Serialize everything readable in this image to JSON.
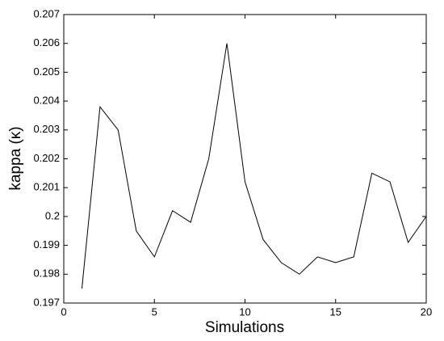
{
  "chart_data": {
    "type": "line",
    "xlabel": "Simulations",
    "ylabel": "kappa (κ)",
    "x": [
      1,
      2,
      3,
      4,
      5,
      6,
      7,
      8,
      9,
      10,
      11,
      12,
      13,
      14,
      15,
      16,
      17,
      18,
      19,
      20
    ],
    "series": [
      {
        "color": "#000000",
        "values": [
          0.1975,
          0.2038,
          0.203,
          0.1995,
          0.1986,
          0.2002,
          0.1998,
          0.202,
          0.206,
          0.2012,
          0.1992,
          0.1984,
          0.198,
          0.1986,
          0.1984,
          0.1986,
          0.2015,
          0.2012,
          0.1991,
          0.2
        ]
      }
    ],
    "xlim": [
      0,
      20
    ],
    "xticks": [
      0,
      5,
      10,
      15,
      20
    ],
    "ylim": [
      0.197,
      0.207
    ],
    "yticks": [
      0.197,
      0.198,
      0.199,
      0.2,
      0.201,
      0.202,
      0.203,
      0.204,
      0.205,
      0.206,
      0.207
    ]
  }
}
